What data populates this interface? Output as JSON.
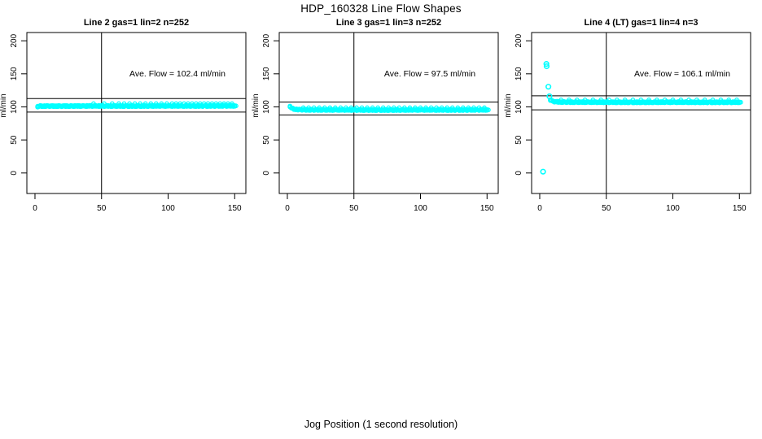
{
  "title": "HDP_160328  Line Flow Shapes",
  "xlabel": "Jog Position (1 second resolution)",
  "colors": {
    "points": "#00ffff",
    "axis": "#000000",
    "background": "#ffffff"
  },
  "chart_data": [
    {
      "type": "scatter",
      "title": "Line 2 gas=1 lin=2 n=252",
      "line_name": "Line 2",
      "gas": 1,
      "lin": 2,
      "n": 252,
      "ave_flow_ml_min": 102.4,
      "annotation": "Ave. Flow =  102.4  ml/min",
      "ylabel": "ml/min",
      "xlim": [
        -6.1,
        158.4
      ],
      "ylim": [
        -31,
        212.5
      ],
      "xticks": [
        0,
        50,
        100,
        150
      ],
      "yticks": [
        0,
        50,
        100,
        150,
        200
      ],
      "vline_x": 50,
      "hlines": [
        112.6,
        92.2
      ],
      "grid": false,
      "band": [
        [
          2,
          100.6
        ],
        [
          4,
          101.2
        ],
        [
          20,
          101.2
        ],
        [
          40,
          101.3
        ],
        [
          60,
          101.3
        ],
        [
          80,
          101.3
        ],
        [
          100,
          101.4
        ],
        [
          120,
          101.4
        ],
        [
          151,
          101.5
        ]
      ],
      "spikes": [
        [
          44,
          105
        ],
        [
          52,
          105
        ],
        [
          58,
          105
        ],
        [
          63,
          105
        ],
        [
          67,
          105
        ],
        [
          71,
          105
        ],
        [
          75,
          105
        ],
        [
          79,
          105
        ],
        [
          83,
          105
        ],
        [
          87,
          105
        ],
        [
          91,
          105
        ],
        [
          95,
          105
        ],
        [
          99,
          105
        ],
        [
          103,
          105
        ],
        [
          106,
          105
        ],
        [
          109,
          105
        ],
        [
          112,
          105
        ],
        [
          115,
          105
        ],
        [
          118,
          105
        ],
        [
          121,
          105
        ],
        [
          124,
          105
        ],
        [
          127,
          105
        ],
        [
          130,
          105
        ],
        [
          133,
          105
        ],
        [
          136,
          105
        ],
        [
          139,
          105
        ],
        [
          142,
          105
        ],
        [
          145,
          105
        ],
        [
          148,
          105
        ]
      ],
      "outliers": []
    },
    {
      "type": "scatter",
      "title": "Line 3 gas=1 lin=3 n=252",
      "line_name": "Line 3",
      "gas": 1,
      "lin": 3,
      "n": 252,
      "ave_flow_ml_min": 97.5,
      "annotation": "Ave. Flow =  97.5  ml/min",
      "ylabel": "ml/min",
      "xlim": [
        -6.1,
        158.4
      ],
      "ylim": [
        -31,
        212.5
      ],
      "xticks": [
        0,
        50,
        100,
        150
      ],
      "yticks": [
        0,
        50,
        100,
        150,
        200
      ],
      "vline_x": 50,
      "hlines": [
        107.3,
        87.8
      ],
      "grid": false,
      "band": [
        [
          2,
          100.8
        ],
        [
          3,
          98.6
        ],
        [
          4,
          97.4
        ],
        [
          5,
          96.8
        ],
        [
          6,
          96.4
        ],
        [
          8,
          96.0
        ],
        [
          10,
          95.8
        ],
        [
          14,
          95.6
        ],
        [
          20,
          95.5
        ],
        [
          40,
          95.4
        ],
        [
          60,
          95.3
        ],
        [
          80,
          95.3
        ],
        [
          100,
          95.4
        ],
        [
          120,
          95.4
        ],
        [
          151,
          95.5
        ]
      ],
      "spikes": [
        [
          12,
          98.8
        ],
        [
          16,
          98.8
        ],
        [
          20,
          98.8
        ],
        [
          24,
          98.8
        ],
        [
          28,
          98.8
        ],
        [
          32,
          98.8
        ],
        [
          36,
          98.8
        ],
        [
          40,
          98.8
        ],
        [
          44,
          98.8
        ],
        [
          48,
          98.8
        ],
        [
          52,
          98.8
        ],
        [
          56,
          98.8
        ],
        [
          60,
          98.8
        ],
        [
          64,
          98.8
        ],
        [
          68,
          98.8
        ],
        [
          72,
          98.8
        ],
        [
          76,
          98.8
        ],
        [
          80,
          98.8
        ],
        [
          84,
          98.8
        ],
        [
          88,
          98.8
        ],
        [
          92,
          98.8
        ],
        [
          96,
          98.8
        ],
        [
          100,
          98.8
        ],
        [
          104,
          98.8
        ],
        [
          108,
          98.8
        ],
        [
          112,
          98.8
        ],
        [
          116,
          98.8
        ],
        [
          120,
          98.8
        ],
        [
          124,
          98.8
        ],
        [
          128,
          98.8
        ],
        [
          132,
          98.8
        ],
        [
          136,
          98.8
        ],
        [
          140,
          98.8
        ],
        [
          144,
          98.8
        ],
        [
          148,
          98.8
        ]
      ],
      "outliers": []
    },
    {
      "type": "scatter",
      "title": "Line 4 (LT) gas=1 lin=4 n=3",
      "line_name": "Line 4 (LT)",
      "gas": 1,
      "lin": 4,
      "n": 3,
      "ave_flow_ml_min": 106.1,
      "annotation": "Ave. Flow =  106.1  ml/min",
      "ylabel": "ml/min",
      "xlim": [
        -6.1,
        158.4
      ],
      "ylim": [
        -31,
        212.5
      ],
      "xticks": [
        0,
        50,
        100,
        150
      ],
      "yticks": [
        0,
        50,
        100,
        150,
        200
      ],
      "vline_x": 50,
      "hlines": [
        116.7,
        95.5
      ],
      "grid": false,
      "band": [
        [
          8,
          110.5
        ],
        [
          9,
          109.2
        ],
        [
          10,
          108.4
        ],
        [
          12,
          107.8
        ],
        [
          16,
          107.4
        ],
        [
          24,
          107.2
        ],
        [
          40,
          107.1
        ],
        [
          60,
          107.0
        ],
        [
          80,
          107.0
        ],
        [
          100,
          107.1
        ],
        [
          120,
          107.0
        ],
        [
          151,
          107.0
        ]
      ],
      "spikes": [
        [
          16,
          110.6
        ],
        [
          22,
          110.6
        ],
        [
          28,
          110.6
        ],
        [
          34,
          110.6
        ],
        [
          40,
          110.6
        ],
        [
          46,
          110.6
        ],
        [
          52,
          110.6
        ],
        [
          58,
          110.6
        ],
        [
          64,
          110.6
        ],
        [
          70,
          110.6
        ],
        [
          76,
          110.6
        ],
        [
          82,
          110.6
        ],
        [
          88,
          110.6
        ],
        [
          94,
          110.6
        ],
        [
          100,
          110.6
        ],
        [
          106,
          110.6
        ],
        [
          112,
          110.6
        ],
        [
          118,
          110.6
        ],
        [
          124,
          110.6
        ],
        [
          130,
          110.6
        ],
        [
          136,
          110.6
        ],
        [
          142,
          110.6
        ],
        [
          148,
          110.6
        ]
      ],
      "outliers": [
        [
          2.5,
          2
        ],
        [
          5,
          165
        ],
        [
          5.2,
          161.5
        ],
        [
          6.5,
          130.5
        ],
        [
          7.3,
          116
        ]
      ]
    }
  ]
}
